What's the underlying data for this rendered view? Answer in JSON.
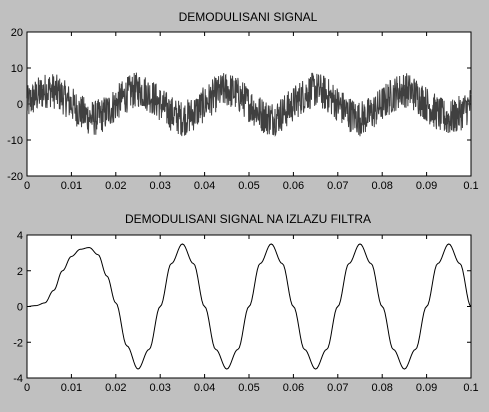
{
  "chart_data": [
    {
      "type": "line",
      "title": "DEMODULISANI SIGNAL",
      "xlabel": "",
      "ylabel": "",
      "xlim": [
        0,
        0.1
      ],
      "ylim": [
        -20,
        20
      ],
      "x_ticks": [
        "0",
        "0.01",
        "0.02",
        "0.03",
        "0.04",
        "0.05",
        "0.06",
        "0.07",
        "0.08",
        "0.09",
        "0.1"
      ],
      "y_ticks": [
        "-20",
        "-10",
        "0",
        "10",
        "20"
      ],
      "x_tick_values": [
        0,
        0.01,
        0.02,
        0.03,
        0.04,
        0.05,
        0.06,
        0.07,
        0.08,
        0.09,
        0.1
      ],
      "y_tick_values": [
        -20,
        -10,
        0,
        10,
        20
      ],
      "grid": false,
      "series": [
        {
          "x": [
            0,
            0.005,
            0.01,
            0.015,
            0.02,
            0.025,
            0.03,
            0.035,
            0.04,
            0.045,
            0.05,
            0.055,
            0.06,
            0.065,
            0.07,
            0.075,
            0.08,
            0.085,
            0.09,
            0.095,
            0.1
          ],
          "values": [
            0,
            4,
            0,
            -4,
            0,
            4,
            0,
            -4,
            0,
            4,
            0,
            -4,
            0,
            4,
            0,
            -4,
            0,
            4,
            0,
            -4,
            0
          ],
          "noise_amplitude": 5,
          "color": "#404040"
        }
      ]
    },
    {
      "type": "line",
      "title": "DEMODULISANI SIGNAL NA IZLAZU FILTRA",
      "xlabel": "",
      "ylabel": "",
      "xlim": [
        0,
        0.1
      ],
      "ylim": [
        -4,
        4
      ],
      "x_ticks": [
        "0",
        "0.01",
        "0.02",
        "0.03",
        "0.04",
        "0.05",
        "0.06",
        "0.07",
        "0.08",
        "0.09",
        "0.1"
      ],
      "y_ticks": [
        "-4",
        "-2",
        "0",
        "2",
        "4"
      ],
      "x_tick_values": [
        0,
        0.01,
        0.02,
        0.03,
        0.04,
        0.05,
        0.06,
        0.07,
        0.08,
        0.09,
        0.1
      ],
      "y_tick_values": [
        -4,
        -2,
        0,
        2,
        4
      ],
      "grid": false,
      "series": [
        {
          "x": [
            0,
            0.002,
            0.004,
            0.006,
            0.008,
            0.01,
            0.012,
            0.014,
            0.016,
            0.018,
            0.02,
            0.0225,
            0.025,
            0.0275,
            0.03,
            0.0325,
            0.035,
            0.0375,
            0.04,
            0.0425,
            0.045,
            0.0475,
            0.05,
            0.0525,
            0.055,
            0.0575,
            0.06,
            0.0625,
            0.065,
            0.0675,
            0.07,
            0.0725,
            0.075,
            0.0775,
            0.08,
            0.0825,
            0.085,
            0.0875,
            0.09,
            0.0925,
            0.095,
            0.0975,
            0.1
          ],
          "values": [
            0,
            0.05,
            0.2,
            0.9,
            2.0,
            2.8,
            3.2,
            3.3,
            2.9,
            1.7,
            0.2,
            -2.2,
            -3.5,
            -2.4,
            0,
            2.4,
            3.5,
            2.4,
            0,
            -2.4,
            -3.5,
            -2.4,
            0,
            2.4,
            3.5,
            2.4,
            0,
            -2.4,
            -3.5,
            -2.4,
            0,
            2.4,
            3.5,
            2.4,
            0,
            -2.4,
            -3.5,
            -2.4,
            0,
            2.4,
            3.5,
            2.4,
            0
          ],
          "color": "#000000"
        }
      ]
    }
  ]
}
